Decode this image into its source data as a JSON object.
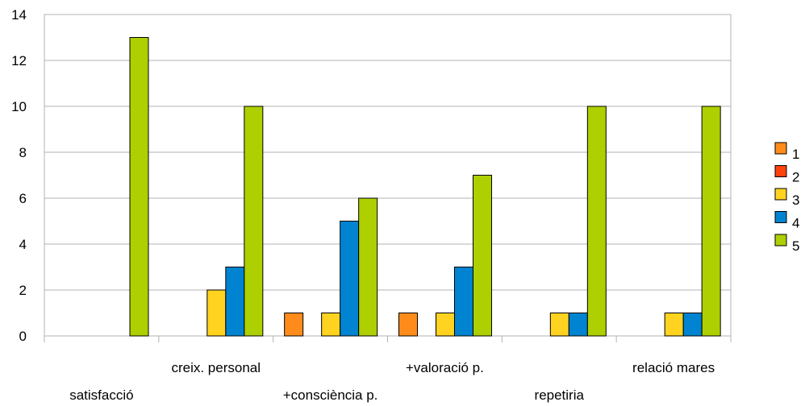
{
  "chart_data": {
    "type": "bar",
    "categories": [
      "satisfacció",
      "creix. personal",
      "+consciència p.",
      "+valoració p.",
      "repetiria",
      "relació mares"
    ],
    "series": [
      {
        "name": "1",
        "color": "#ff8c1a",
        "values": [
          0,
          0,
          1,
          1,
          0,
          0
        ]
      },
      {
        "name": "2",
        "color": "#ff420e",
        "values": [
          0,
          0,
          0,
          0,
          0,
          0
        ]
      },
      {
        "name": "3",
        "color": "#ffd320",
        "values": [
          0,
          2,
          1,
          1,
          1,
          1
        ]
      },
      {
        "name": "4",
        "color": "#0084d1",
        "values": [
          0,
          3,
          5,
          3,
          1,
          1
        ]
      },
      {
        "name": "5",
        "color": "#aecf00",
        "values": [
          13,
          10,
          6,
          7,
          10,
          10
        ]
      }
    ],
    "ylim": [
      0,
      14
    ],
    "yticks": [
      0,
      2,
      4,
      6,
      8,
      10,
      12,
      14
    ],
    "grid": true,
    "legend": "right"
  }
}
